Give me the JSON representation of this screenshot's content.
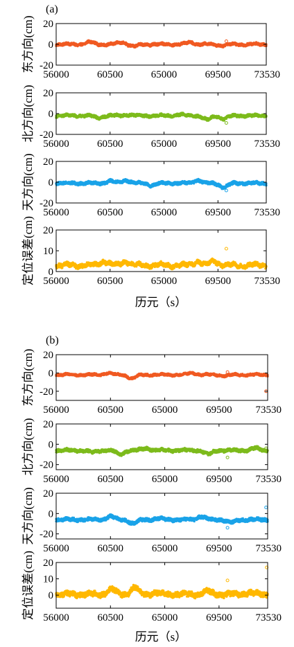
{
  "figure": {
    "panel_a_label": "(a)",
    "panel_b_label": "(b)",
    "xlabel": "历元（s）"
  },
  "colors": {
    "east": "#f05a22",
    "north": "#7dbb1c",
    "up": "#1aa3e8",
    "pos": "#ffb800"
  },
  "chart_data": [
    {
      "panel": "a",
      "type": "scatter",
      "ylabel": "东方向(cm)",
      "xlim": [
        56000,
        73530
      ],
      "ylim": [
        -20,
        20
      ],
      "xticks": [
        56000,
        60500,
        65000,
        69500,
        73530
      ],
      "yticks": [
        20,
        0,
        -20
      ],
      "series": [
        {
          "color_key": "east",
          "baseline": 0,
          "noise": 1.2,
          "bumps": [
            [
              58800,
              2
            ],
            [
              61500,
              2
            ],
            [
              62500,
              -2
            ],
            [
              67200,
              2
            ],
            [
              69800,
              -1
            ]
          ],
          "outliers": [
            [
              70200,
              3
            ]
          ]
        }
      ]
    },
    {
      "panel": "a",
      "type": "scatter",
      "ylabel": "北方向(cm)",
      "xlim": [
        56000,
        73530
      ],
      "ylim": [
        -20,
        20
      ],
      "xticks": [
        56000,
        60500,
        65000,
        69500,
        73530
      ],
      "yticks": [
        20,
        0,
        -20
      ],
      "series": [
        {
          "color_key": "north",
          "baseline": -2,
          "noise": 1.3,
          "bumps": [
            [
              59500,
              -2
            ],
            [
              62000,
              1
            ],
            [
              66300,
              1
            ],
            [
              68600,
              -4
            ],
            [
              70000,
              -3
            ]
          ],
          "outliers": [
            [
              70200,
              -9
            ]
          ]
        }
      ]
    },
    {
      "panel": "a",
      "type": "scatter",
      "ylabel": "天方向(cm)",
      "xlim": [
        56000,
        73530
      ],
      "ylim": [
        -20,
        20
      ],
      "xticks": [
        56000,
        60500,
        65000,
        69500,
        73530
      ],
      "yticks": [
        20,
        0,
        -20
      ],
      "series": [
        {
          "color_key": "up",
          "baseline": -1,
          "noise": 1.4,
          "bumps": [
            [
              60500,
              2
            ],
            [
              61800,
              3
            ],
            [
              64000,
              -2
            ],
            [
              67800,
              3
            ],
            [
              70000,
              -4
            ]
          ],
          "outliers": [
            [
              70200,
              -8
            ]
          ]
        }
      ]
    },
    {
      "panel": "a",
      "type": "scatter",
      "ylabel": "定位误差(cm)",
      "xlim": [
        56000,
        73530
      ],
      "ylim": [
        0,
        20
      ],
      "xticks": [
        56000,
        60500,
        65000,
        69500,
        73530
      ],
      "yticks": [
        20,
        10,
        0
      ],
      "series": [
        {
          "color_key": "pos",
          "baseline": 3,
          "noise": 1.0,
          "bumps": [
            [
              60000,
              2
            ],
            [
              61800,
              2
            ],
            [
              67800,
              2
            ],
            [
              69200,
              2
            ]
          ],
          "outliers": [
            [
              70200,
              11
            ]
          ]
        }
      ]
    },
    {
      "panel": "b",
      "type": "scatter",
      "ylabel": "东方向(cm)",
      "xlim": [
        56000,
        73530
      ],
      "ylim": [
        -30,
        20
      ],
      "xticks": [
        56000,
        60500,
        65000,
        69500,
        73530
      ],
      "yticks": [
        20,
        0,
        -20
      ],
      "series": [
        {
          "color_key": "east",
          "baseline": -2,
          "noise": 1.2,
          "bumps": [
            [
              60300,
              2
            ],
            [
              62300,
              -4
            ],
            [
              67300,
              2
            ],
            [
              70000,
              -1
            ]
          ],
          "outliers": [
            [
              70200,
              1
            ],
            [
              73400,
              -20
            ]
          ]
        }
      ]
    },
    {
      "panel": "b",
      "type": "scatter",
      "ylabel": "北方向(cm)",
      "xlim": [
        56000,
        73530
      ],
      "ylim": [
        -25,
        20
      ],
      "xticks": [
        56000,
        60500,
        65000,
        69500,
        73530
      ],
      "yticks": [
        20,
        0,
        -20
      ],
      "series": [
        {
          "color_key": "north",
          "baseline": -6,
          "noise": 1.5,
          "bumps": [
            [
              59000,
              -2
            ],
            [
              61300,
              -4
            ],
            [
              63500,
              2
            ],
            [
              68600,
              -4
            ],
            [
              72500,
              2
            ]
          ],
          "outliers": [
            [
              70200,
              -13
            ],
            [
              73400,
              -4
            ]
          ]
        }
      ]
    },
    {
      "panel": "b",
      "type": "scatter",
      "ylabel": "天方向(cm)",
      "xlim": [
        56000,
        73530
      ],
      "ylim": [
        -25,
        20
      ],
      "xticks": [
        56000,
        60500,
        65000,
        69500,
        73530
      ],
      "yticks": [
        20,
        0,
        -20
      ],
      "series": [
        {
          "color_key": "up",
          "baseline": -6,
          "noise": 1.6,
          "bumps": [
            [
              60500,
              3
            ],
            [
              62400,
              -4
            ],
            [
              64500,
              1
            ],
            [
              68000,
              3
            ],
            [
              70500,
              -3
            ]
          ],
          "outliers": [
            [
              70200,
              -14
            ],
            [
              73400,
              6
            ]
          ]
        }
      ]
    },
    {
      "panel": "b",
      "type": "scatter",
      "ylabel": "定位误差(cm)",
      "xlim": [
        56000,
        73530
      ],
      "ylim": [
        -8,
        20
      ],
      "xticks": [
        56000,
        60500,
        65000,
        69500,
        73530
      ],
      "yticks": [
        20,
        10,
        0
      ],
      "series": [
        {
          "color_key": "pos",
          "baseline": 0.5,
          "noise": 1.6,
          "bumps": [
            [
              60600,
              3
            ],
            [
              62500,
              4
            ],
            [
              64200,
              1
            ],
            [
              68500,
              2
            ],
            [
              72000,
              1
            ]
          ],
          "outliers": [
            [
              70200,
              9
            ],
            [
              73450,
              17
            ]
          ]
        }
      ]
    }
  ]
}
